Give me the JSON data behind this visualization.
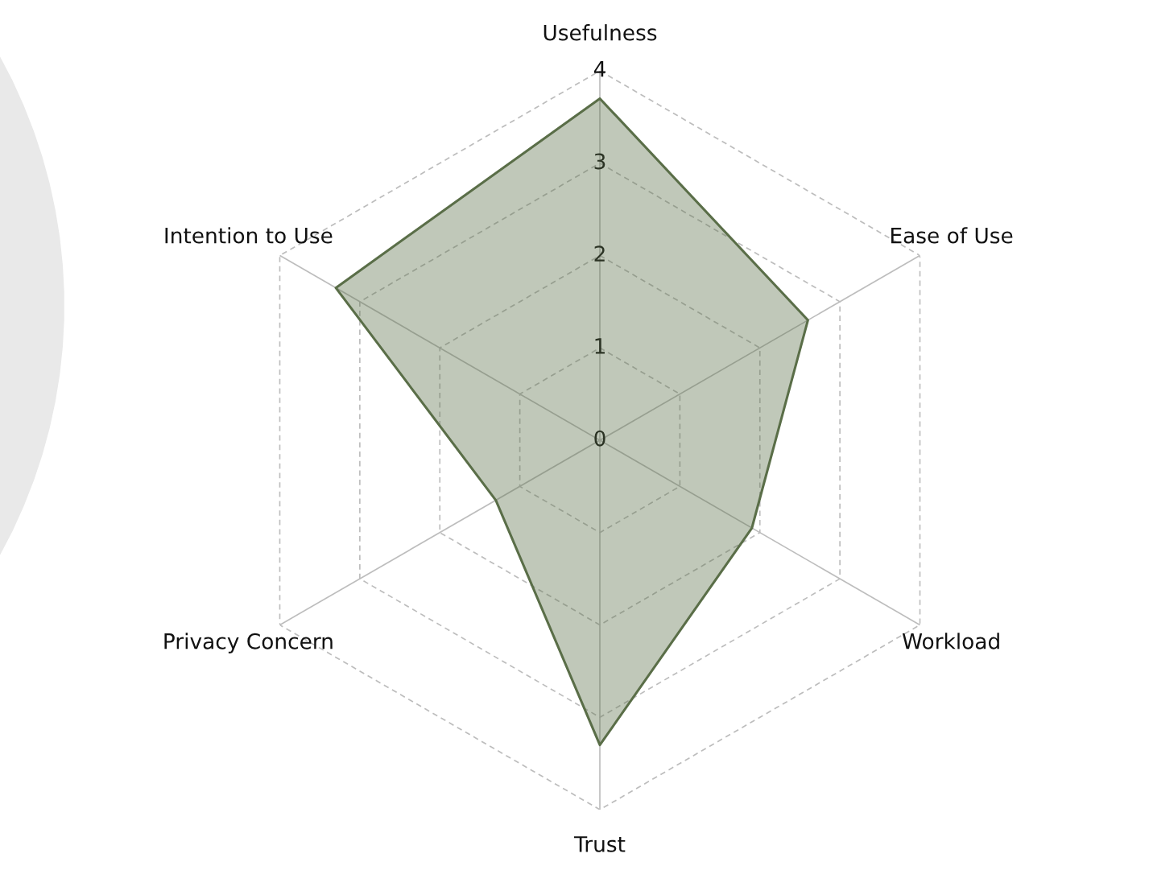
{
  "chart_data": {
    "type": "radar",
    "categories": [
      "Usefulness",
      "Ease of Use",
      "Workload",
      "Trust",
      "Privacy Concern",
      "Intention to Use"
    ],
    "series": [
      {
        "color": "#5a6e48",
        "values": [
          3.7,
          2.6,
          1.9,
          3.3,
          1.3,
          3.3
        ]
      }
    ],
    "ylim": [
      0,
      4
    ],
    "yticks": [
      0,
      1,
      2,
      3,
      4
    ],
    "grid": true
  }
}
